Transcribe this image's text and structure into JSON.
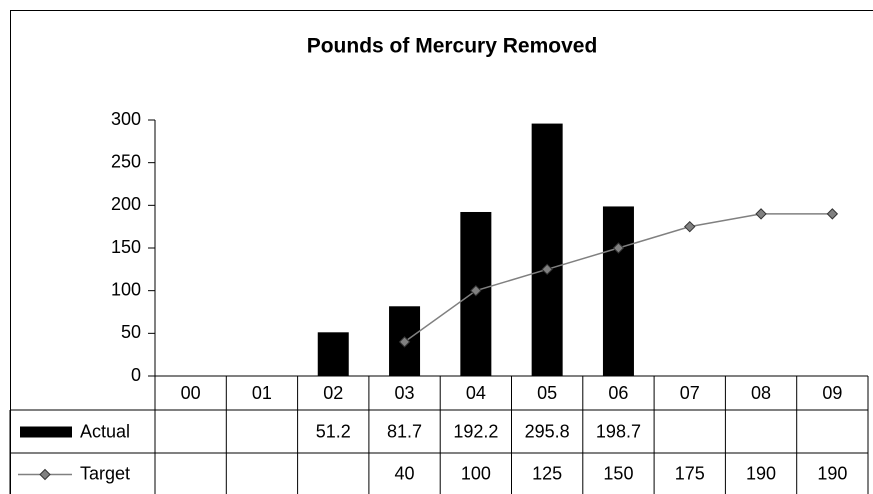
{
  "chart_data": {
    "type": "bar",
    "title": "Pounds of Mercury Removed",
    "categories": [
      "00",
      "01",
      "02",
      "03",
      "04",
      "05",
      "06",
      "07",
      "08",
      "09"
    ],
    "series": [
      {
        "name": "Actual",
        "type": "bar",
        "color": "#000000",
        "values": [
          null,
          null,
          51.2,
          81.7,
          192.2,
          295.8,
          198.7,
          null,
          null,
          null
        ]
      },
      {
        "name": "Target",
        "type": "line",
        "color": "#808080",
        "values": [
          null,
          null,
          null,
          40,
          100,
          125,
          150,
          175,
          190,
          190
        ]
      }
    ],
    "ylim": [
      0,
      300
    ],
    "yticks": [
      0,
      50,
      100,
      150,
      200,
      250,
      300
    ],
    "grid": false,
    "data_table": true
  }
}
